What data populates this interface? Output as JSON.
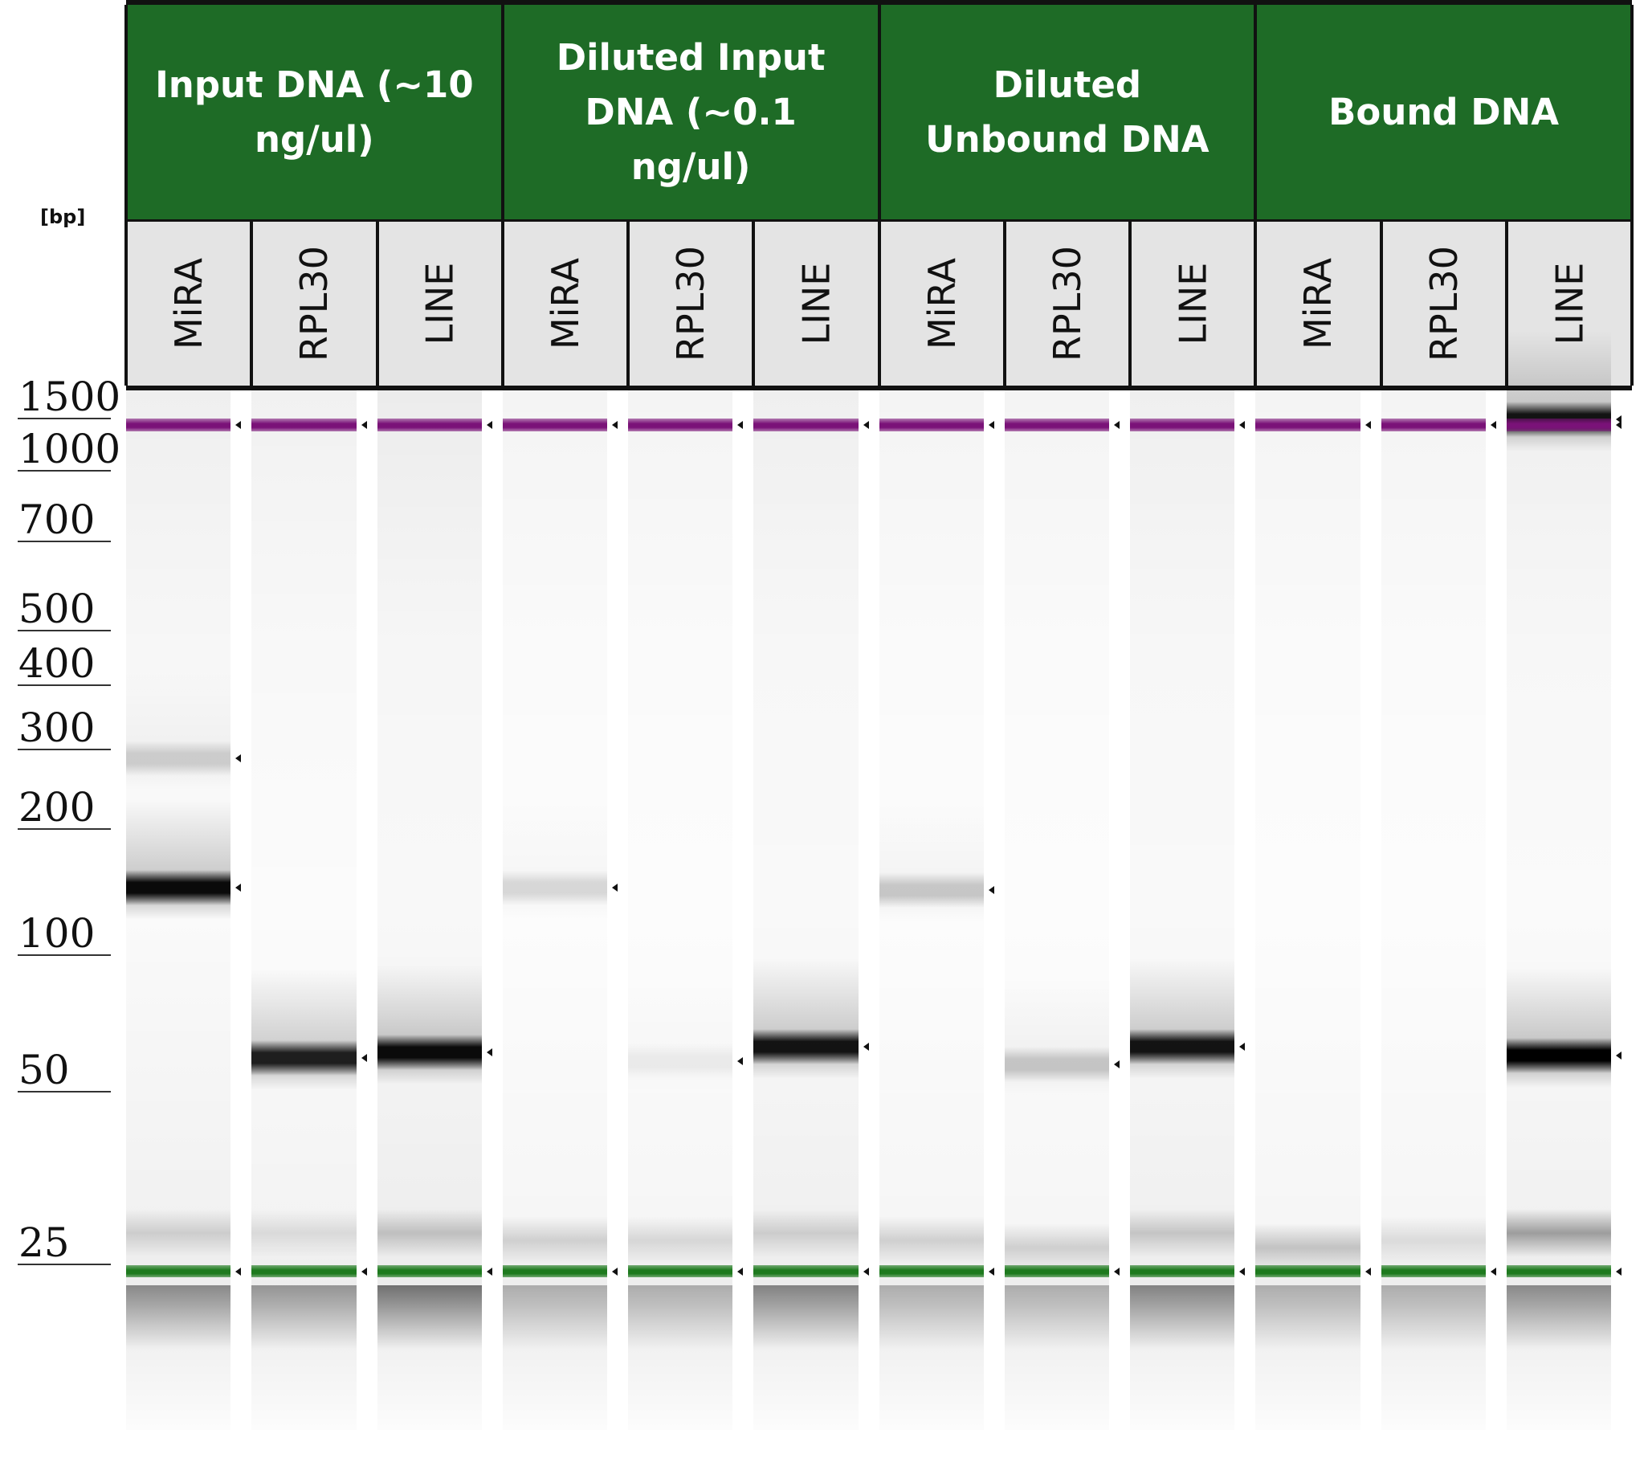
{
  "gel": {
    "unit_label": "[bp]",
    "ladder": [
      "1500",
      "1000",
      "700",
      "500",
      "400",
      "300",
      "200",
      "100",
      "50",
      "25"
    ],
    "groups": [
      {
        "title": "Input DNA (~10 ng/ul)",
        "lanes": [
          "MiRA",
          "RPL30",
          "LINE"
        ]
      },
      {
        "title": "Diluted Input DNA (~0.1 ng/ul)",
        "lanes": [
          "MiRA",
          "RPL30",
          "LINE"
        ]
      },
      {
        "title": "Diluted Unbound DNA",
        "lanes": [
          "MiRA",
          "RPL30",
          "LINE"
        ]
      },
      {
        "title": "Bound DNA",
        "lanes": [
          "MiRA",
          "RPL30",
          "LINE"
        ]
      }
    ],
    "colors": {
      "header_bg": "#1e6b26",
      "header_text": "#ffffff",
      "lane_header_bg": "#e4e4e4",
      "upper_marker": "#7a1278",
      "lower_marker": "#1e7a1e",
      "band": "#000000"
    },
    "lanes": [
      {
        "group": 0,
        "label": "MiRA",
        "bands": [
          {
            "bp": 300,
            "intensity": 0.15
          },
          {
            "bp": 160,
            "intensity": 0.95
          }
        ],
        "primer_dimer": {
          "bp": 30,
          "intensity": 0.15
        },
        "smear": 0.35
      },
      {
        "group": 0,
        "label": "RPL30",
        "bands": [
          {
            "bp": 70,
            "intensity": 0.85
          }
        ],
        "primer_dimer": {
          "bp": 30,
          "intensity": 0.1
        },
        "smear": 0.25
      },
      {
        "group": 0,
        "label": "LINE",
        "bands": [
          {
            "bp": 72,
            "intensity": 0.95
          }
        ],
        "primer_dimer": {
          "bp": 30,
          "intensity": 0.2
        },
        "smear": 0.55
      },
      {
        "group": 1,
        "label": "MiRA",
        "bands": [
          {
            "bp": 160,
            "intensity": 0.12
          }
        ],
        "primer_dimer": {
          "bp": 29,
          "intensity": 0.15
        },
        "smear": 0.05
      },
      {
        "group": 1,
        "label": "RPL30",
        "bands": [
          {
            "bp": 69,
            "intensity": 0.05
          }
        ],
        "primer_dimer": {
          "bp": 29,
          "intensity": 0.12
        },
        "smear": 0.05
      },
      {
        "group": 1,
        "label": "LINE",
        "bands": [
          {
            "bp": 74,
            "intensity": 0.9
          }
        ],
        "primer_dimer": {
          "bp": 30,
          "intensity": 0.15
        },
        "smear": 0.4
      },
      {
        "group": 2,
        "label": "MiRA",
        "bands": [
          {
            "bp": 158,
            "intensity": 0.18
          }
        ],
        "primer_dimer": {
          "bp": 29,
          "intensity": 0.15
        },
        "smear": 0.05
      },
      {
        "group": 2,
        "label": "RPL30",
        "bands": [
          {
            "bp": 68,
            "intensity": 0.18
          }
        ],
        "primer_dimer": {
          "bp": 28,
          "intensity": 0.15
        },
        "smear": 0.05
      },
      {
        "group": 2,
        "label": "LINE",
        "bands": [
          {
            "bp": 74,
            "intensity": 0.9
          }
        ],
        "primer_dimer": {
          "bp": 30,
          "intensity": 0.18
        },
        "smear": 0.4
      },
      {
        "group": 3,
        "label": "MiRA",
        "bands": [],
        "primer_dimer": {
          "bp": 28,
          "intensity": 0.2
        },
        "smear": 0.05
      },
      {
        "group": 3,
        "label": "RPL30",
        "bands": [],
        "primer_dimer": {
          "bp": 29,
          "intensity": 0.1
        },
        "smear": 0.05
      },
      {
        "group": 3,
        "label": "LINE",
        "bands": [
          {
            "bp": 1550,
            "intensity": 0.9
          },
          {
            "bp": 71,
            "intensity": 1.0
          }
        ],
        "primer_dimer": {
          "bp": 30,
          "intensity": 0.35
        },
        "smear": 0.35
      }
    ]
  }
}
